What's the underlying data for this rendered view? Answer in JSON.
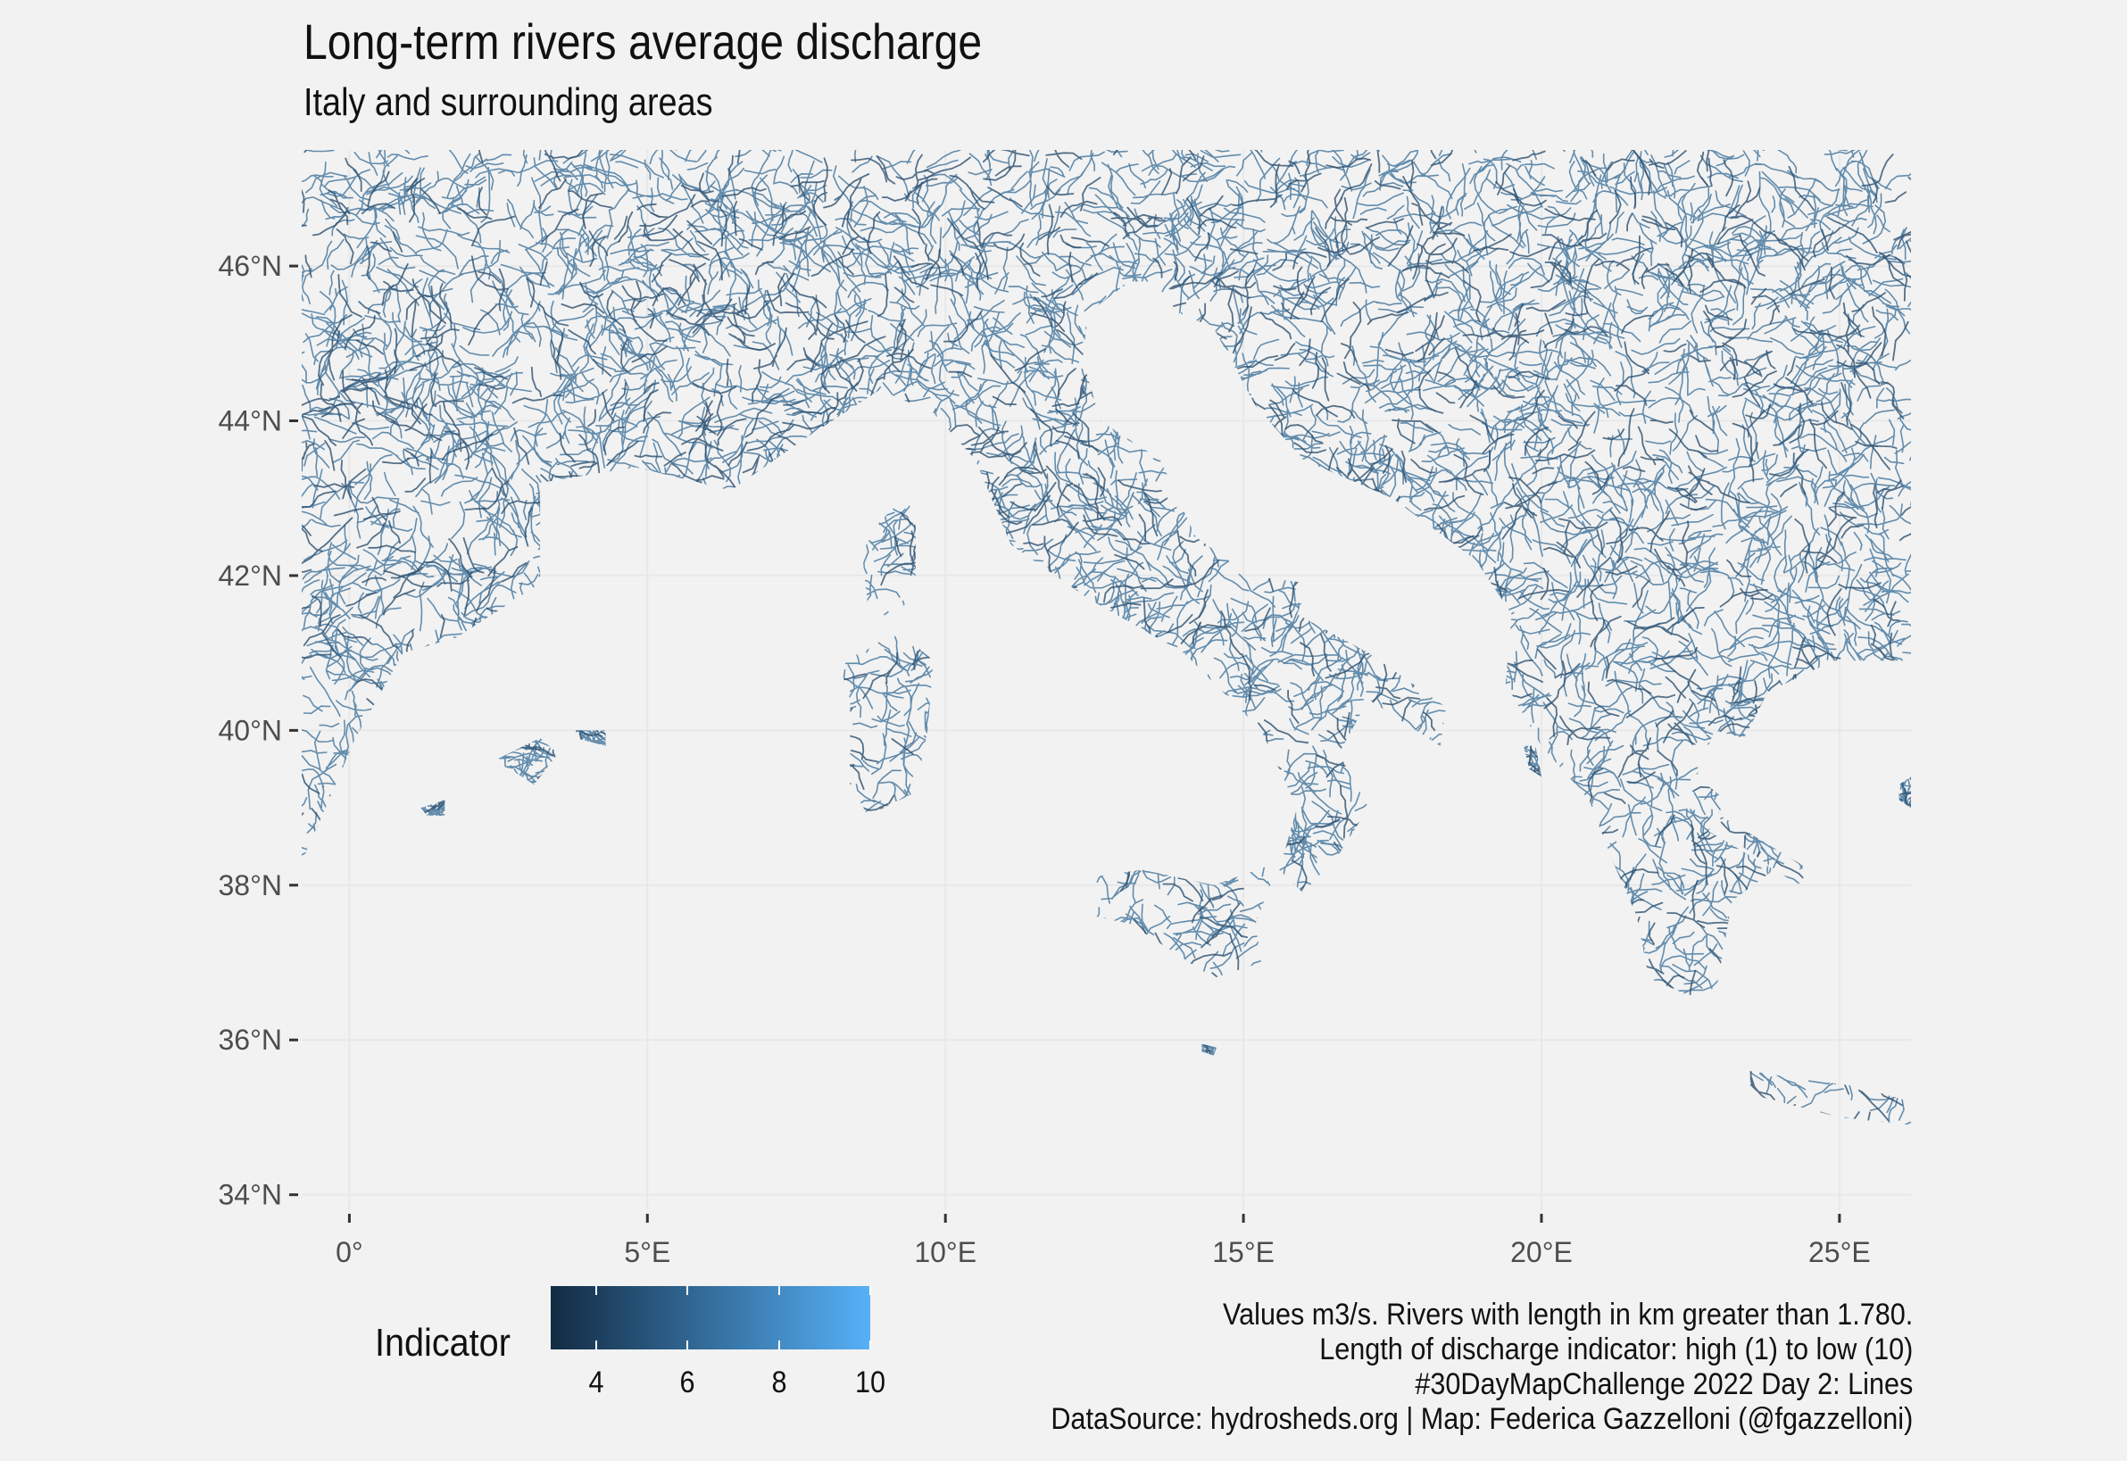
{
  "title": "Long-term rivers average discharge",
  "subtitle": "Italy and surrounding areas",
  "map": {
    "extent": {
      "lon": [
        -0.8,
        26.2
      ],
      "lat": [
        33.8,
        47.5
      ]
    },
    "y_axis": [
      {
        "value": 46,
        "label": "46°N"
      },
      {
        "value": 44,
        "label": "44°N"
      },
      {
        "value": 42,
        "label": "42°N"
      },
      {
        "value": 40,
        "label": "40°N"
      },
      {
        "value": 38,
        "label": "38°N"
      },
      {
        "value": 36,
        "label": "36°N"
      },
      {
        "value": 34,
        "label": "34°N"
      }
    ],
    "x_axis": [
      {
        "value": 0,
        "label": "0°"
      },
      {
        "value": 5,
        "label": "5°E"
      },
      {
        "value": 10,
        "label": "10°E"
      },
      {
        "value": 15,
        "label": "15°E"
      },
      {
        "value": 20,
        "label": "20°E"
      },
      {
        "value": 25,
        "label": "25°E"
      }
    ],
    "colors": {
      "low": "#132b43",
      "high": "#56b1f7",
      "river": "#4a7aa0",
      "panel": "#f2f2f2",
      "grid": "#e8e8e8"
    }
  },
  "legend": {
    "title": "Indicator",
    "min": 3,
    "max": 10,
    "breaks": [
      {
        "value": 4,
        "label": "4"
      },
      {
        "value": 6,
        "label": "6"
      },
      {
        "value": 8,
        "label": "8"
      },
      {
        "value": 10,
        "label": "10"
      }
    ]
  },
  "caption": [
    "Values m3/s. Rivers with length in km greater than 1.780.",
    "Length of discharge indicator: high (1) to low (10)",
    "#30DayMapChallenge 2022 Day 2: Lines",
    "DataSource: hydrosheds.org | Map: Federica Gazzelloni (@fgazzelloni)"
  ]
}
